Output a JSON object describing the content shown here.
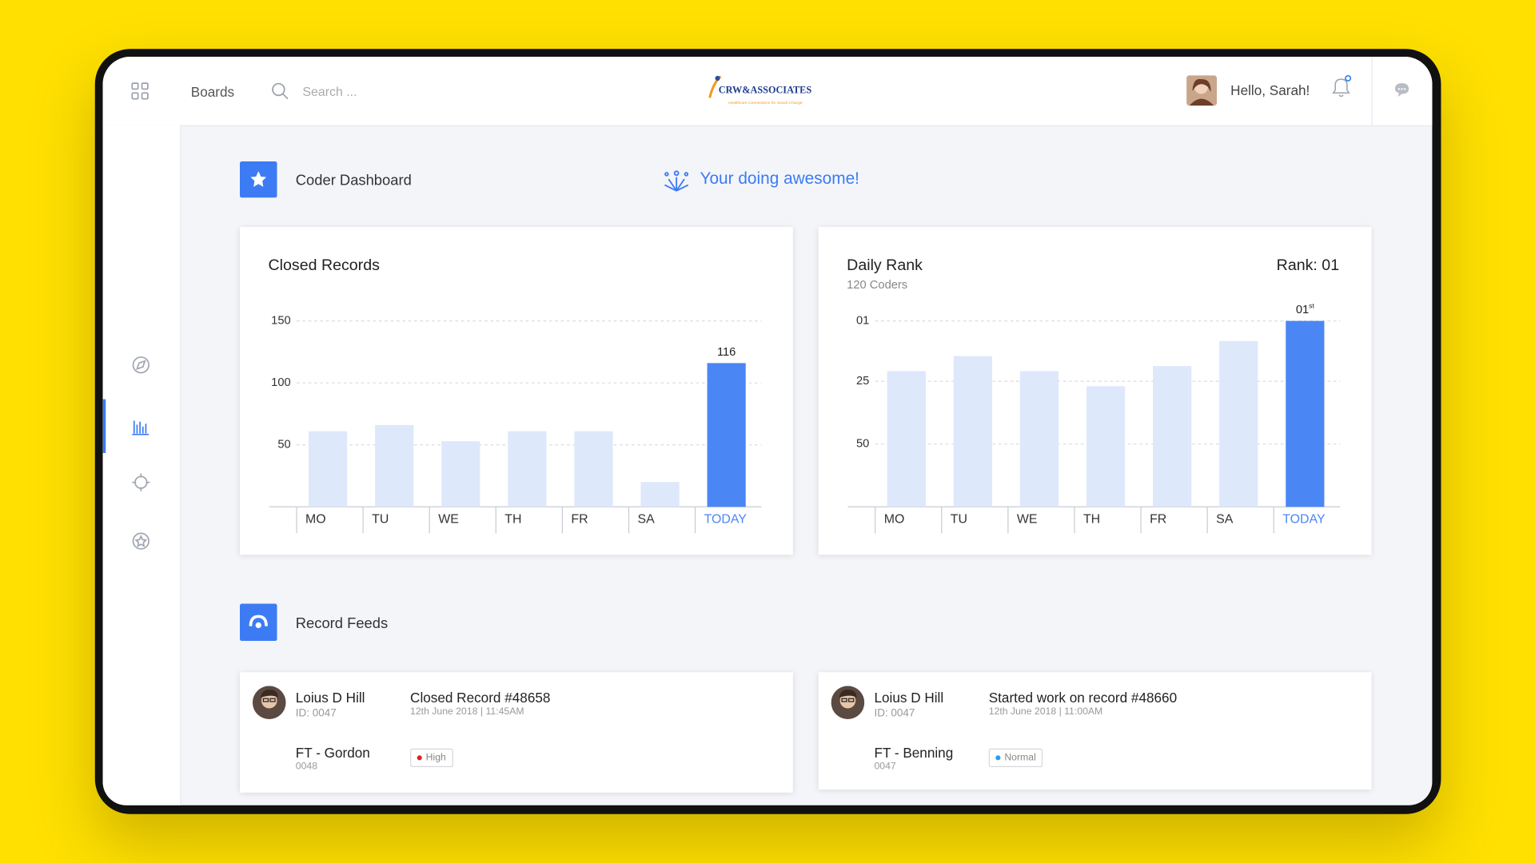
{
  "header": {
    "nav_label": "Boards",
    "search_placeholder": "Search ...",
    "logo_text": "CRW&ASSOCIATES",
    "logo_tagline": "Healthcare Connections for Social Change",
    "greeting": "Hello,  Sarah!"
  },
  "dashboard": {
    "title": "Coder Dashboard",
    "message": "Your doing awesome!"
  },
  "chart_data": [
    {
      "type": "bar",
      "title": "Closed Records",
      "categories": [
        "MO",
        "TU",
        "WE",
        "TH",
        "FR",
        "SA",
        "TODAY"
      ],
      "values": [
        61,
        66,
        53,
        61,
        61,
        20,
        116
      ],
      "value_labels": [
        null,
        null,
        null,
        null,
        null,
        null,
        "116"
      ],
      "color": "#dde8fb",
      "highlight_color": "#4a87f5",
      "highlight_category": "TODAY",
      "ylim": [
        0,
        150
      ],
      "yticks": [
        50,
        100,
        150
      ],
      "grid": true
    },
    {
      "type": "bar",
      "title": "Daily Rank",
      "subtitle": "120 Coders",
      "rank_label": "Rank: 01",
      "categories": [
        "MO",
        "TU",
        "WE",
        "TH",
        "FR",
        "SA",
        "TODAY"
      ],
      "values": [
        21,
        15,
        21,
        27,
        19,
        9,
        1
      ],
      "value_labels": [
        null,
        null,
        null,
        null,
        null,
        null,
        "01"
      ],
      "value_label_sup": "st",
      "color": "#dde8fb",
      "highlight_color": "#4a87f5",
      "highlight_category": "TODAY",
      "ylim": [
        75,
        1
      ],
      "yticks": [
        {
          "value": 1,
          "label": "01"
        },
        25,
        50
      ],
      "grid": true
    }
  ],
  "feeds": {
    "title": "Record Feeds",
    "items": [
      {
        "name": "Loius D Hill",
        "id": "ID: 0047",
        "action": "Closed Record #48658",
        "time": "12th June 2018 | 11:45AM",
        "group": "FT - Gordon",
        "group_id": "0048",
        "priority": "High",
        "priority_color": "#e02020"
      },
      {
        "name": "Loius D Hill",
        "id": "ID: 0047",
        "action": "Started work on record #48660",
        "time": "12th June 2018 | 11:00AM",
        "group": "FT - Benning",
        "group_id": "0047",
        "priority": "Normal",
        "priority_color": "#2a9df4"
      }
    ]
  }
}
